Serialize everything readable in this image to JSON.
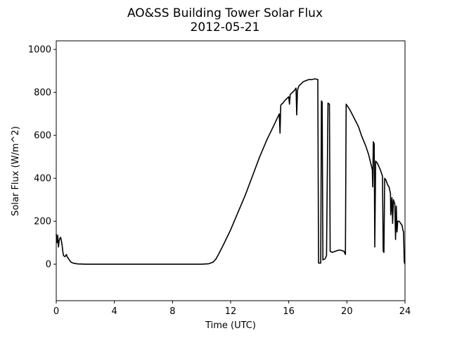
{
  "chart_data": {
    "type": "line",
    "title": "AO&SS Building Tower Solar Flux",
    "subtitle": "2012-05-21",
    "xlabel": "Time (UTC)",
    "ylabel": "Solar Flux (W/m^2)",
    "xlim": [
      0,
      24
    ],
    "ylim": [
      -170,
      1040
    ],
    "xticks": [
      0,
      4,
      8,
      12,
      16,
      20,
      24
    ],
    "yticks": [
      0,
      200,
      400,
      600,
      800,
      1000
    ],
    "grid": false,
    "line_color": "#000000",
    "series": [
      {
        "points": [
          [
            0.0,
            140
          ],
          [
            0.05,
            100
          ],
          [
            0.1,
            135
          ],
          [
            0.15,
            80
          ],
          [
            0.2,
            110
          ],
          [
            0.25,
            120
          ],
          [
            0.3,
            125
          ],
          [
            0.35,
            110
          ],
          [
            0.4,
            90
          ],
          [
            0.45,
            60
          ],
          [
            0.5,
            40
          ],
          [
            0.6,
            35
          ],
          [
            0.7,
            45
          ],
          [
            0.75,
            35
          ],
          [
            0.85,
            25
          ],
          [
            1.0,
            10
          ],
          [
            1.2,
            4
          ],
          [
            1.5,
            1
          ],
          [
            2.0,
            0
          ],
          [
            4.0,
            0
          ],
          [
            8.0,
            0
          ],
          [
            10.0,
            0
          ],
          [
            10.5,
            2
          ],
          [
            10.8,
            10
          ],
          [
            11.0,
            25
          ],
          [
            11.2,
            50
          ],
          [
            11.5,
            90
          ],
          [
            12.0,
            160
          ],
          [
            12.5,
            240
          ],
          [
            13.0,
            320
          ],
          [
            13.5,
            410
          ],
          [
            14.0,
            500
          ],
          [
            14.5,
            580
          ],
          [
            15.0,
            650
          ],
          [
            15.35,
            700
          ],
          [
            15.4,
            610
          ],
          [
            15.45,
            740
          ],
          [
            15.5,
            745
          ],
          [
            15.6,
            750
          ],
          [
            15.7,
            760
          ],
          [
            16.0,
            780
          ],
          [
            16.05,
            745
          ],
          [
            16.1,
            790
          ],
          [
            16.4,
            810
          ],
          [
            16.5,
            820
          ],
          [
            16.55,
            695
          ],
          [
            16.6,
            810
          ],
          [
            16.7,
            830
          ],
          [
            17.0,
            850
          ],
          [
            17.2,
            855
          ],
          [
            17.4,
            860
          ],
          [
            17.6,
            860
          ],
          [
            17.8,
            863
          ],
          [
            18.0,
            860
          ],
          [
            18.05,
            5
          ],
          [
            18.2,
            5
          ],
          [
            18.25,
            760
          ],
          [
            18.3,
            755
          ],
          [
            18.35,
            20
          ],
          [
            18.5,
            25
          ],
          [
            18.6,
            40
          ],
          [
            18.7,
            750
          ],
          [
            18.8,
            745
          ],
          [
            18.85,
            60
          ],
          [
            19.0,
            55
          ],
          [
            19.2,
            60
          ],
          [
            19.4,
            65
          ],
          [
            19.6,
            65
          ],
          [
            19.8,
            60
          ],
          [
            19.9,
            45
          ],
          [
            19.95,
            745
          ],
          [
            20.2,
            720
          ],
          [
            20.5,
            680
          ],
          [
            20.8,
            640
          ],
          [
            21.0,
            600
          ],
          [
            21.3,
            550
          ],
          [
            21.5,
            510
          ],
          [
            21.75,
            440
          ],
          [
            21.78,
            360
          ],
          [
            21.82,
            570
          ],
          [
            21.88,
            560
          ],
          [
            21.92,
            80
          ],
          [
            21.98,
            480
          ],
          [
            22.1,
            470
          ],
          [
            22.3,
            440
          ],
          [
            22.45,
            410
          ],
          [
            22.5,
            60
          ],
          [
            22.55,
            55
          ],
          [
            22.6,
            400
          ],
          [
            22.7,
            390
          ],
          [
            22.8,
            370
          ],
          [
            22.9,
            360
          ],
          [
            23.0,
            330
          ],
          [
            23.02,
            230
          ],
          [
            23.1,
            310
          ],
          [
            23.15,
            190
          ],
          [
            23.2,
            300
          ],
          [
            23.3,
            280
          ],
          [
            23.35,
            115
          ],
          [
            23.4,
            270
          ],
          [
            23.45,
            150
          ],
          [
            23.5,
            200
          ],
          [
            23.6,
            200
          ],
          [
            23.7,
            190
          ],
          [
            23.8,
            180
          ],
          [
            23.85,
            160
          ],
          [
            23.9,
            150
          ],
          [
            23.95,
            10
          ],
          [
            24.0,
            0
          ]
        ]
      }
    ]
  }
}
